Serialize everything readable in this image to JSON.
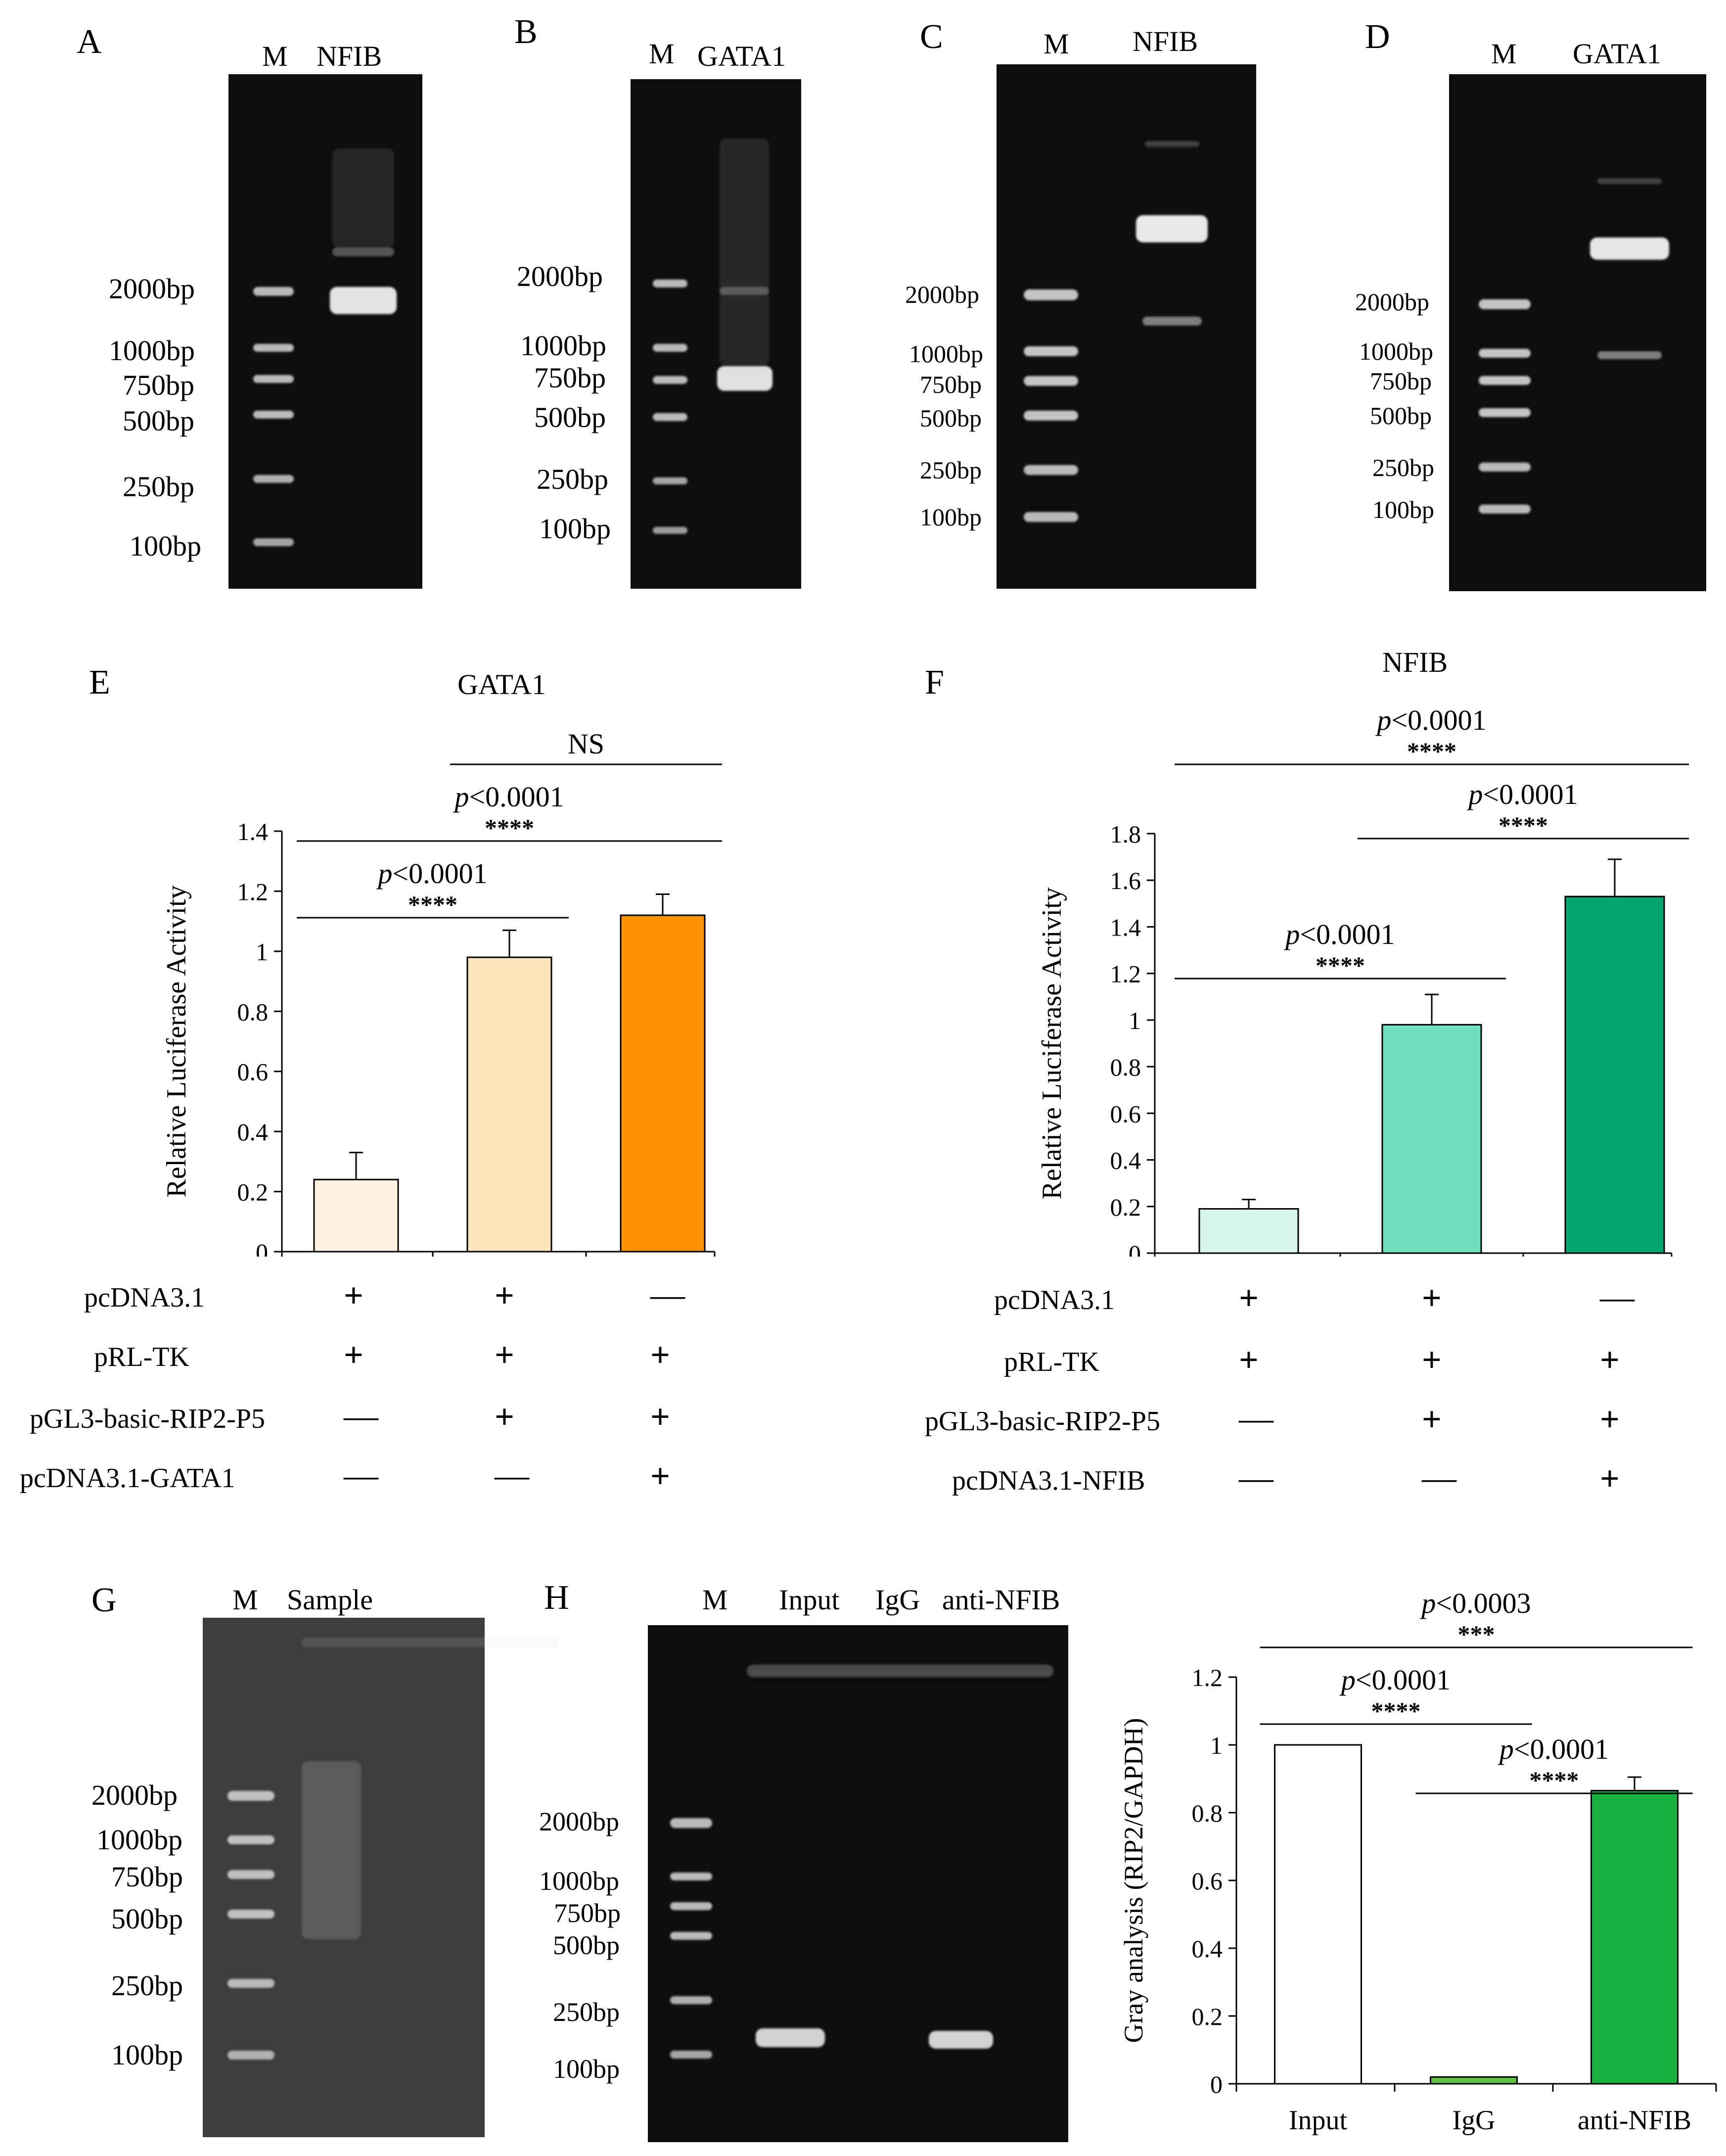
{
  "gels": [
    {
      "id": "A",
      "label": "A",
      "lanes": [
        "M",
        "NFIB"
      ],
      "markers": [
        "2000bp",
        "1000bp",
        "750bp",
        "500bp",
        "250bp",
        "100bp"
      ]
    },
    {
      "id": "B",
      "label": "B",
      "lanes": [
        "M",
        "GATA1"
      ],
      "markers": [
        "2000bp",
        "1000bp",
        "750bp",
        "500bp",
        "250bp",
        "100bp"
      ]
    },
    {
      "id": "C",
      "label": "C",
      "lanes": [
        "M",
        "NFIB"
      ],
      "markers": [
        "2000bp",
        "1000bp",
        "750bp",
        "500bp",
        "250bp",
        "100bp"
      ]
    },
    {
      "id": "D",
      "label": "D",
      "lanes": [
        "M",
        "GATA1"
      ],
      "markers": [
        "2000bp",
        "1000bp",
        "750bp",
        "500bp",
        "250bp",
        "100bp"
      ]
    },
    {
      "id": "G",
      "label": "G",
      "lanes": [
        "M",
        "Sample"
      ],
      "markers": [
        "2000bp",
        "1000bp",
        "750bp",
        "500bp",
        "250bp",
        "100bp"
      ]
    },
    {
      "id": "H",
      "label": "H",
      "lanes": [
        "M",
        "Input",
        "IgG",
        "anti-NFIB"
      ],
      "markers": [
        "2000bp",
        "1000bp",
        "750bp",
        "500bp",
        "250bp",
        "100bp"
      ]
    }
  ],
  "chart_data": [
    {
      "id": "E",
      "panel": "E",
      "type": "bar",
      "title": "GATA1",
      "ylabel": "Relative Luciferase Activity",
      "ylim": [
        0,
        1.4
      ],
      "yticks": [
        "0",
        "0.2",
        "0.4",
        "0.6",
        "0.8",
        "1",
        "1.2",
        "1.4"
      ],
      "values": [
        0.24,
        0.98,
        1.12
      ],
      "errors": [
        0.09,
        0.09,
        0.07
      ],
      "colors": [
        "#fef2e0",
        "#fde4bd",
        "#fb9400"
      ],
      "comparisons": [
        {
          "from": 0,
          "to": 1,
          "p": "<0.0001",
          "stars": "****"
        },
        {
          "from": 0,
          "to": 2,
          "p": "<0.0001",
          "stars": "****"
        },
        {
          "from": 1,
          "to": 2,
          "p": "",
          "stars": "NS"
        }
      ],
      "rows": [
        {
          "label": "pcDNA3.1",
          "signs": [
            "+",
            "+",
            "—"
          ]
        },
        {
          "label": "pRL-TK",
          "signs": [
            "+",
            "+",
            "+"
          ]
        },
        {
          "label": "pGL3-basic-RIP2-P5",
          "signs": [
            "—",
            "+",
            "+"
          ]
        },
        {
          "label": "pcDNA3.1-GATA1",
          "signs": [
            "—",
            "—",
            "+"
          ]
        }
      ]
    },
    {
      "id": "F",
      "panel": "F",
      "type": "bar",
      "title": "NFIB",
      "ylabel": "Relative Luciferase Activity",
      "ylim": [
        0,
        1.8
      ],
      "yticks": [
        "0",
        "0.2",
        "0.4",
        "0.6",
        "0.8",
        "1",
        "1.2",
        "1.4",
        "1.6",
        "1.8"
      ],
      "values": [
        0.19,
        0.98,
        1.53
      ],
      "errors": [
        0.04,
        0.13,
        0.16
      ],
      "colors": [
        "#d8f5ea",
        "#70dfbd",
        "#06a66e"
      ],
      "comparisons": [
        {
          "from": 0,
          "to": 1,
          "p": "<0.0001",
          "stars": "****"
        },
        {
          "from": 0,
          "to": 2,
          "p": "<0.0001",
          "stars": "****"
        },
        {
          "from": 1,
          "to": 2,
          "p": "<0.0001",
          "stars": "****"
        }
      ],
      "rows": [
        {
          "label": "pcDNA3.1",
          "signs": [
            "+",
            "+",
            "—"
          ]
        },
        {
          "label": "pRL-TK",
          "signs": [
            "+",
            "+",
            "+"
          ]
        },
        {
          "label": "pGL3-basic-RIP2-P5",
          "signs": [
            "—",
            "+",
            "+"
          ]
        },
        {
          "label": "pcDNA3.1-NFIB",
          "signs": [
            "—",
            "—",
            "+"
          ]
        }
      ]
    },
    {
      "id": "H2",
      "type": "bar",
      "ylabel": "Gray analysis (RIP2/GAPDH)",
      "ylim": [
        0,
        1.2
      ],
      "yticks": [
        "0",
        "0.2",
        "0.4",
        "0.6",
        "0.8",
        "1",
        "1.2"
      ],
      "categories": [
        "Input",
        "IgG",
        "anti-NFIB"
      ],
      "values": [
        1.0,
        0.02,
        0.865
      ],
      "errors": [
        0,
        0,
        0.04
      ],
      "colors": [
        "#ffffff",
        "#5fbf46",
        "#17b13f"
      ],
      "comparisons": [
        {
          "from": 0,
          "to": 1,
          "p": "<0.0001",
          "stars": "****"
        },
        {
          "from": 0,
          "to": 2,
          "p": "<0.0003",
          "stars": "***"
        },
        {
          "from": 1,
          "to": 2,
          "p": "<0.0001",
          "stars": "****"
        }
      ]
    }
  ]
}
